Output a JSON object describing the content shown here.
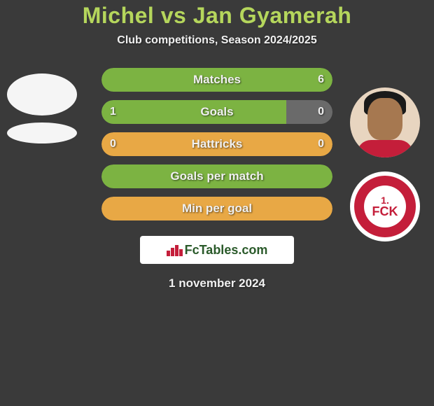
{
  "title": "Michel vs Jan Gyamerah",
  "subtitle": "Club competitions, Season 2024/2025",
  "colors": {
    "title": "#b5d65c",
    "text": "#f0f0f0",
    "background": "#3a3a3a",
    "club_primary": "#c41e3a",
    "bar_green": "#7cb342",
    "bar_orange": "#e8a845",
    "bar_muted": "#6a6a6a"
  },
  "player_left": {
    "name": "Michel"
  },
  "player_right": {
    "name": "Jan Gyamerah",
    "club_top": "1.",
    "club_bottom": "FCK"
  },
  "stats": [
    {
      "label": "Matches",
      "left_val": "",
      "right_val": "6",
      "left_width_pct": 0,
      "right_width_pct": 100,
      "left_color": "#7cb342",
      "right_color": "#7cb342",
      "bg_color": "#7cb342"
    },
    {
      "label": "Goals",
      "left_val": "1",
      "right_val": "0",
      "left_width_pct": 80,
      "right_width_pct": 20,
      "left_color": "#7cb342",
      "right_color": "#6a6a6a",
      "bg_color": "#6a6a6a"
    },
    {
      "label": "Hattricks",
      "left_val": "0",
      "right_val": "0",
      "left_width_pct": 0,
      "right_width_pct": 0,
      "left_color": "#e8a845",
      "right_color": "#e8a845",
      "bg_color": "#e8a845"
    },
    {
      "label": "Goals per match",
      "left_val": "",
      "right_val": "",
      "left_width_pct": 0,
      "right_width_pct": 0,
      "left_color": "#7cb342",
      "right_color": "#7cb342",
      "bg_color": "#7cb342"
    },
    {
      "label": "Min per goal",
      "left_val": "",
      "right_val": "",
      "left_width_pct": 0,
      "right_width_pct": 0,
      "left_color": "#e8a845",
      "right_color": "#e8a845",
      "bg_color": "#e8a845"
    }
  ],
  "watermark": "FcTables.com",
  "date": "1 november 2024"
}
